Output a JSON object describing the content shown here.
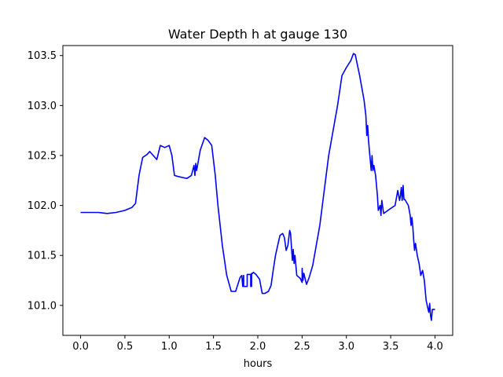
{
  "chart_data": {
    "type": "line",
    "title": "Water Depth h at gauge 130",
    "xlabel": "hours",
    "ylabel": "",
    "xlim": [
      -0.2,
      4.2
    ],
    "ylim": [
      100.7,
      103.6
    ],
    "grid": false,
    "xticks": [
      0.0,
      0.5,
      1.0,
      1.5,
      2.0,
      2.5,
      3.0,
      3.5,
      4.0
    ],
    "xtick_labels": [
      "0.0",
      "0.5",
      "1.0",
      "1.5",
      "2.0",
      "2.5",
      "3.0",
      "3.5",
      "4.0"
    ],
    "yticks": [
      101.0,
      101.5,
      102.0,
      102.5,
      103.0,
      103.5
    ],
    "ytick_labels": [
      "101.0",
      "101.5",
      "102.0",
      "102.5",
      "103.0",
      "103.5"
    ],
    "series": [
      {
        "name": "",
        "color": "#0000ff",
        "x": [
          0.0,
          0.2,
          0.3,
          0.4,
          0.5,
          0.58,
          0.62,
          0.66,
          0.7,
          0.75,
          0.78,
          0.82,
          0.86,
          0.9,
          0.95,
          1.0,
          1.03,
          1.06,
          1.1,
          1.15,
          1.2,
          1.25,
          1.28,
          1.29,
          1.3,
          1.31,
          1.35,
          1.4,
          1.44,
          1.48,
          1.52,
          1.55,
          1.6,
          1.65,
          1.7,
          1.75,
          1.8,
          1.82,
          1.83,
          1.84,
          1.84,
          1.88,
          1.88,
          1.92,
          1.92,
          1.93,
          1.93,
          1.94,
          1.95,
          1.98,
          2.02,
          2.05,
          2.08,
          2.12,
          2.15,
          2.17,
          2.2,
          2.25,
          2.28,
          2.3,
          2.32,
          2.34,
          2.36,
          2.37,
          2.39,
          2.4,
          2.41,
          2.42,
          2.44,
          2.48,
          2.5,
          2.5,
          2.51,
          2.52,
          2.55,
          2.58,
          2.62,
          2.7,
          2.8,
          2.9,
          2.95,
          3.0,
          3.05,
          3.08,
          3.1,
          3.15,
          3.2,
          3.22,
          3.23,
          3.24,
          3.25,
          3.26,
          3.28,
          3.29,
          3.3,
          3.31,
          3.33,
          3.35,
          3.36,
          3.38,
          3.39,
          3.4,
          3.42,
          3.5,
          3.55,
          3.58,
          3.6,
          3.61,
          3.62,
          3.63,
          3.64,
          3.65,
          3.66,
          3.7,
          3.72,
          3.73,
          3.74,
          3.75,
          3.76,
          3.77,
          3.78,
          3.8,
          3.82,
          3.84,
          3.86,
          3.88,
          3.9,
          3.92,
          3.93,
          3.94,
          3.95,
          3.96,
          3.97,
          4.0
        ],
        "values": [
          101.93,
          101.93,
          101.92,
          101.93,
          101.95,
          101.98,
          102.02,
          102.3,
          102.48,
          102.51,
          102.54,
          102.5,
          102.46,
          102.6,
          102.58,
          102.6,
          102.5,
          102.3,
          102.29,
          102.28,
          102.27,
          102.3,
          102.4,
          102.3,
          102.42,
          102.35,
          102.55,
          102.68,
          102.65,
          102.6,
          102.3,
          102.0,
          101.6,
          101.3,
          101.14,
          101.14,
          101.28,
          101.3,
          101.19,
          101.3,
          101.19,
          101.19,
          101.31,
          101.31,
          101.19,
          101.19,
          101.32,
          101.32,
          101.33,
          101.31,
          101.26,
          101.12,
          101.12,
          101.14,
          101.2,
          101.33,
          101.5,
          101.7,
          101.72,
          101.68,
          101.55,
          101.6,
          101.75,
          101.72,
          101.45,
          101.56,
          101.42,
          101.5,
          101.3,
          101.27,
          101.23,
          101.37,
          101.25,
          101.32,
          101.21,
          101.28,
          101.4,
          101.8,
          102.5,
          103.0,
          103.3,
          103.38,
          103.45,
          103.52,
          103.51,
          103.3,
          103.05,
          102.9,
          102.7,
          102.8,
          102.65,
          102.55,
          102.35,
          102.5,
          102.35,
          102.4,
          102.3,
          102.1,
          101.95,
          102.0,
          101.9,
          102.05,
          101.92,
          101.97,
          102.0,
          102.15,
          102.05,
          102.1,
          102.18,
          102.05,
          102.2,
          102.06,
          102.06,
          102.0,
          101.9,
          101.8,
          101.88,
          101.78,
          101.65,
          101.55,
          101.62,
          101.5,
          101.42,
          101.3,
          101.35,
          101.25,
          101.05,
          100.97,
          100.93,
          101.02,
          100.9,
          100.85,
          100.96,
          100.96
        ]
      }
    ]
  }
}
